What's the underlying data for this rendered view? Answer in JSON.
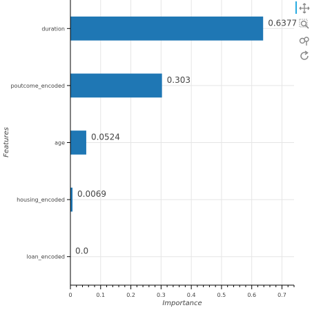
{
  "chart_data": {
    "type": "bar",
    "orientation": "horizontal",
    "categories": [
      "duration",
      "poutcome_encoded",
      "age",
      "housing_encoded",
      "loan_encoded"
    ],
    "values": [
      0.6377,
      0.303,
      0.0524,
      0.0069,
      0.0
    ],
    "value_labels": [
      "0.6377",
      "0.303",
      "0.0524",
      "0.0069",
      "0.0"
    ],
    "xlabel": "Importance",
    "ylabel": "Features",
    "xlim": [
      0,
      0.74
    ],
    "xticks": [
      0,
      0.1,
      0.2,
      0.3,
      0.4,
      0.5,
      0.6,
      0.7
    ],
    "xtick_labels": [
      "0",
      "0.1",
      "0.2",
      "0.3",
      "0.4",
      "0.5",
      "0.6",
      "0.7"
    ],
    "grid": true,
    "bar_color": "#1f77b4"
  },
  "toolbar": {
    "tools": [
      "pan-icon",
      "box-zoom-icon",
      "wheel-zoom-icon",
      "reset-icon"
    ],
    "active_color": "#26aae1"
  }
}
